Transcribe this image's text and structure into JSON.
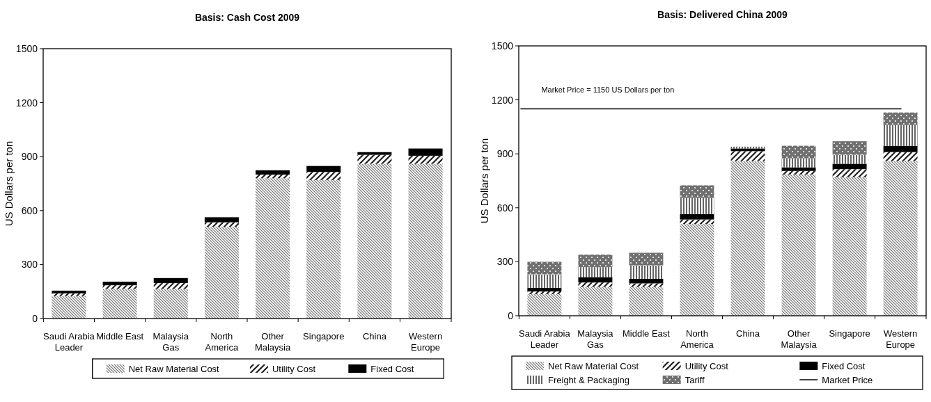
{
  "chart_data": [
    {
      "type": "bar",
      "stacked": true,
      "title": "Basis: Cash Cost 2009",
      "ylabel": "US Dollars per ton",
      "categories": [
        "Saudi Arabia\nLeader",
        "Middle East",
        "Malaysia\nGas",
        "North\nAmerica",
        "Other\nMalaysia",
        "Singapore",
        "China",
        "Western\nEurope"
      ],
      "series": [
        {
          "name": "Net Raw Material Cost",
          "color": "#707070",
          "values": [
            125,
            165,
            165,
            510,
            780,
            770,
            860,
            860
          ]
        },
        {
          "name": "Utility Cost",
          "color": "#202020",
          "values": [
            15,
            20,
            32,
            25,
            20,
            45,
            50,
            45
          ]
        },
        {
          "name": "Fixed Cost",
          "color": "#000000",
          "values": [
            15,
            20,
            28,
            28,
            24,
            33,
            15,
            40
          ]
        }
      ],
      "ylim": [
        0,
        1500
      ],
      "yticks": [
        0,
        300,
        600,
        900,
        1200,
        1500
      ],
      "grid": false,
      "legend": "bottom"
    },
    {
      "type": "bar",
      "stacked": true,
      "title": "Basis: Delivered China 2009",
      "ylabel": "US Dollars per ton",
      "categories": [
        "Saudi Arabia\nLeader",
        "Malaysia\nGas",
        "Middle East",
        "North\nAmerica",
        "China",
        "Other\nMalaysia",
        "Singapore",
        "Western\nEurope"
      ],
      "series": [
        {
          "name": "Net Raw Material Cost",
          "color": "#707070",
          "values": [
            120,
            160,
            160,
            510,
            860,
            785,
            770,
            860
          ]
        },
        {
          "name": "Utility Cost",
          "color": "#202020",
          "values": [
            15,
            25,
            20,
            25,
            55,
            20,
            45,
            50
          ]
        },
        {
          "name": "Fixed Cost",
          "color": "#000000",
          "values": [
            20,
            30,
            25,
            30,
            15,
            20,
            30,
            35
          ]
        },
        {
          "name": "Freight & Packaging",
          "color": "#303030",
          "values": [
            75,
            55,
            75,
            90,
            10,
            50,
            50,
            115
          ]
        },
        {
          "name": "Tariff",
          "color": "#404040",
          "values": [
            70,
            70,
            70,
            70,
            0,
            70,
            75,
            70
          ]
        }
      ],
      "ref_lines": [
        {
          "axis": "y",
          "value": 1150,
          "label": "Market Price",
          "color": "#000000"
        }
      ],
      "annotations": [
        {
          "text": "Market Price = 1150 US Dollars per ton",
          "x": "Saudi Arabia\nLeader",
          "y": 1150
        }
      ],
      "ylim": [
        0,
        1500
      ],
      "yticks": [
        0,
        300,
        600,
        900,
        1200,
        1500
      ],
      "grid": false,
      "legend": "bottom"
    }
  ]
}
